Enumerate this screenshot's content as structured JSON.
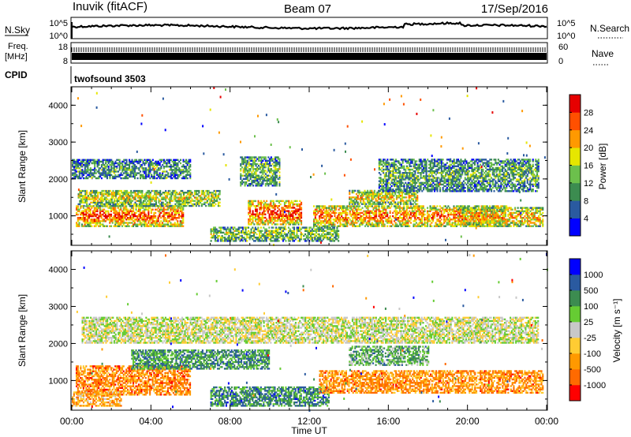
{
  "header": {
    "site": "Inuvik (fitACF)",
    "beam": "Beam 07",
    "date": "17/Sep/2016"
  },
  "nsky_panel": {
    "left_label": "N.Sky",
    "right_label": "N.Search",
    "left_ticks": [
      "10^5",
      "10^0"
    ],
    "right_ticks": [
      "10^5",
      "10^0"
    ],
    "series_color": "#000000"
  },
  "freq_panel": {
    "left_label_lines": [
      "Freq.",
      "[MHz]"
    ],
    "right_label": "Nave",
    "left_ticks": [
      "18",
      "8"
    ],
    "right_ticks": [
      "60",
      "0"
    ]
  },
  "cpid": {
    "label": "CPID",
    "mode": "twofsound 3503"
  },
  "chart_data": [
    {
      "type": "heatmap",
      "name": "power",
      "ylabel": "Slant Range [km]",
      "ylim": [
        200,
        4500
      ],
      "yticks": [
        {
          "value": 1000,
          "label": "1000"
        },
        {
          "value": 2000,
          "label": "2000"
        },
        {
          "value": 3000,
          "label": "3000"
        },
        {
          "value": 4000,
          "label": "4000"
        }
      ],
      "xlim": [
        0,
        24
      ],
      "colorbar": {
        "label": "Power [dB]",
        "ticks": [
          "4",
          "8",
          "12",
          "16",
          "20",
          "24",
          "28"
        ],
        "colors": [
          "#0000ff",
          "#2a5aa0",
          "#3c8c50",
          "#6cc04c",
          "#e6e600",
          "#ff9900",
          "#ff5000",
          "#e60000"
        ]
      },
      "bands": [
        {
          "t0": 0.2,
          "t1": 5.6,
          "r0": 700,
          "r1": 1250,
          "level": 0.85
        },
        {
          "t0": 0.3,
          "t1": 7.5,
          "r0": 1250,
          "r1": 1700,
          "level": 0.55
        },
        {
          "t0": 8.9,
          "t1": 11.6,
          "r0": 750,
          "r1": 1400,
          "level": 0.9
        },
        {
          "t0": 12.2,
          "t1": 22.0,
          "r0": 700,
          "r1": 1250,
          "level": 0.8
        },
        {
          "t0": 14.0,
          "t1": 17.5,
          "r0": 1300,
          "r1": 1700,
          "level": 0.6
        },
        {
          "t0": 15.5,
          "t1": 23.6,
          "r0": 1650,
          "r1": 2550,
          "level": 0.35
        },
        {
          "t0": 8.5,
          "t1": 10.5,
          "r0": 1800,
          "r1": 2600,
          "level": 0.4
        },
        {
          "t0": 7.0,
          "t1": 13.5,
          "r0": 300,
          "r1": 700,
          "level": 0.45
        },
        {
          "t0": 0.0,
          "t1": 6.0,
          "r0": 2000,
          "r1": 2500,
          "level": 0.3
        },
        {
          "t0": 19.5,
          "t1": 23.8,
          "r0": 700,
          "r1": 1200,
          "level": 0.7
        }
      ]
    },
    {
      "type": "heatmap",
      "name": "velocity",
      "ylabel": "Slant Range [km]",
      "ylim": [
        200,
        4500
      ],
      "yticks": [
        {
          "value": 1000,
          "label": "1000"
        },
        {
          "value": 2000,
          "label": "2000"
        },
        {
          "value": 3000,
          "label": "3000"
        },
        {
          "value": 4000,
          "label": "4000"
        }
      ],
      "xlim": [
        0,
        24
      ],
      "colorbar": {
        "label": "Velocity [m s⁻¹]",
        "ticks": [
          "-1000",
          "-500",
          "-100",
          "-25",
          "25",
          "100",
          "500",
          "1000"
        ],
        "colors": [
          "#ff0000",
          "#ff6a00",
          "#ff9900",
          "#ffcc33",
          "#c8c8c8",
          "#66cc33",
          "#3c8c50",
          "#2a5aa0",
          "#0000ff"
        ]
      },
      "bands": [
        {
          "t0": 0.2,
          "t1": 6.0,
          "r0": 600,
          "r1": 1400,
          "level": -0.6
        },
        {
          "t0": 3.0,
          "t1": 10.0,
          "r0": 1300,
          "r1": 1800,
          "level": 0.5
        },
        {
          "t0": 7.0,
          "t1": 13.0,
          "r0": 300,
          "r1": 800,
          "level": 0.55
        },
        {
          "t0": 12.5,
          "t1": 23.8,
          "r0": 650,
          "r1": 1250,
          "level": -0.55
        },
        {
          "t0": 0.5,
          "t1": 23.6,
          "r0": 2000,
          "r1": 2700,
          "level": 0.0
        },
        {
          "t0": 14.0,
          "t1": 18.0,
          "r0": 1400,
          "r1": 1900,
          "level": 0.35
        },
        {
          "t0": 0.0,
          "t1": 2.5,
          "r0": 300,
          "r1": 700,
          "level": -0.4
        }
      ]
    }
  ],
  "time_axis": {
    "label": "Time UT",
    "ticks": [
      {
        "t": 0,
        "label": "00:00"
      },
      {
        "t": 4,
        "label": "04:00"
      },
      {
        "t": 8,
        "label": "08:00"
      },
      {
        "t": 12,
        "label": "12:00"
      },
      {
        "t": 16,
        "label": "16:00"
      },
      {
        "t": 20,
        "label": "20:00"
      },
      {
        "t": 24,
        "label": "00:00"
      }
    ]
  }
}
